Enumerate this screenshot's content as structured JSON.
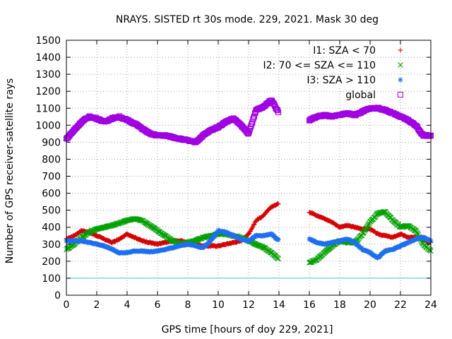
{
  "chart_data": {
    "type": "scatter",
    "title": "NRAYS. SISTED rt 30s mode. 229, 2021. Mask 30 deg",
    "xlabel": "GPS time [hours of doy 229, 2021]",
    "ylabel": "Number of GPS receiver-satellite rays",
    "xlim": [
      0,
      24
    ],
    "ylim": [
      0,
      1500
    ],
    "xticks": [
      0,
      2,
      4,
      6,
      8,
      10,
      12,
      14,
      16,
      18,
      20,
      22,
      24
    ],
    "yticks": [
      0,
      100,
      200,
      300,
      400,
      500,
      600,
      700,
      800,
      900,
      1000,
      1100,
      1200,
      1300,
      1400,
      1500
    ],
    "grid": true,
    "legend_position": "top-right",
    "reference_line": {
      "y": 100,
      "color": "#40c8d8"
    },
    "data_gap": [
      14.15,
      15.85
    ],
    "series": [
      {
        "name": "I1: SZA < 70",
        "marker": "+",
        "color": "#d40000",
        "x": [
          0,
          0.5,
          1,
          1.5,
          2,
          2.5,
          3,
          3.5,
          4,
          4.5,
          5,
          5.5,
          6,
          6.5,
          7,
          7.5,
          8,
          8.5,
          9,
          9.5,
          10,
          10.5,
          11,
          11.5,
          12,
          12.5,
          13,
          13.5,
          14,
          16,
          16.5,
          17,
          17.5,
          18,
          18.5,
          19,
          19.5,
          20,
          20.5,
          21,
          21.5,
          22,
          22.5,
          23,
          23.5,
          24
        ],
        "y": [
          330,
          350,
          380,
          370,
          350,
          330,
          310,
          330,
          360,
          340,
          320,
          310,
          300,
          310,
          320,
          320,
          310,
          300,
          290,
          290,
          290,
          300,
          310,
          320,
          360,
          440,
          470,
          520,
          540,
          490,
          470,
          450,
          430,
          400,
          410,
          400,
          390,
          390,
          360,
          350,
          340,
          360,
          340,
          340,
          330,
          310
        ]
      },
      {
        "name": "I2: 70 <= SZA <= 110",
        "marker": "x",
        "color": "#00a000",
        "x": [
          0,
          0.5,
          1,
          1.5,
          2,
          2.5,
          3,
          3.5,
          4,
          4.5,
          5,
          5.5,
          6,
          6.5,
          7,
          7.5,
          8,
          8.5,
          9,
          9.5,
          10,
          10.5,
          11,
          11.5,
          12,
          12.5,
          13,
          13.5,
          14,
          16,
          16.5,
          17,
          17.5,
          18,
          18.5,
          19,
          19.5,
          20,
          20.5,
          21,
          21.5,
          22,
          22.5,
          23,
          23.5,
          24
        ],
        "y": [
          270,
          300,
          340,
          370,
          390,
          400,
          410,
          425,
          440,
          450,
          440,
          410,
          380,
          350,
          320,
          300,
          310,
          320,
          340,
          350,
          360,
          360,
          350,
          340,
          320,
          300,
          280,
          250,
          210,
          190,
          210,
          250,
          290,
          320,
          310,
          310,
          360,
          430,
          480,
          490,
          440,
          400,
          410,
          380,
          300,
          260
        ]
      },
      {
        "name": "I3: SZA > 110",
        "marker": "*",
        "color": "#1e6ff0",
        "x": [
          0,
          0.5,
          1,
          1.5,
          2,
          2.5,
          3,
          3.5,
          4,
          4.5,
          5,
          5.5,
          6,
          6.5,
          7,
          7.5,
          8,
          8.5,
          9,
          9.5,
          10,
          10.5,
          11,
          11.5,
          12,
          12.5,
          13,
          13.5,
          14,
          16,
          16.5,
          17,
          17.5,
          18,
          18.5,
          19,
          19.5,
          20,
          20.5,
          21,
          21.5,
          22,
          22.5,
          23,
          23.5,
          24
        ],
        "y": [
          320,
          320,
          320,
          310,
          300,
          290,
          270,
          250,
          250,
          260,
          260,
          255,
          260,
          270,
          280,
          290,
          300,
          290,
          280,
          320,
          380,
          370,
          350,
          330,
          320,
          350,
          350,
          360,
          320,
          330,
          310,
          300,
          310,
          320,
          330,
          310,
          270,
          250,
          220,
          260,
          270,
          290,
          310,
          330,
          340,
          320
        ]
      },
      {
        "name": "global",
        "marker": "square",
        "color": "#a000e0",
        "x": [
          0,
          0.5,
          1,
          1.5,
          2,
          2.5,
          3,
          3.5,
          4,
          4.5,
          5,
          5.5,
          6,
          6.5,
          7,
          7.5,
          8,
          8.5,
          9,
          9.5,
          10,
          10.5,
          11,
          11.5,
          12,
          12.5,
          13,
          13.5,
          14,
          16,
          16.5,
          17,
          17.5,
          18,
          18.5,
          19,
          19.5,
          20,
          20.5,
          21,
          21.5,
          22,
          22.5,
          23,
          23.5,
          24
        ],
        "y": [
          920,
          970,
          1020,
          1050,
          1040,
          1020,
          1040,
          1050,
          1030,
          1010,
          980,
          950,
          940,
          940,
          930,
          920,
          910,
          900,
          940,
          970,
          990,
          1020,
          1040,
          1000,
          950,
          1090,
          1110,
          1150,
          1070,
          1030,
          1050,
          1060,
          1050,
          1060,
          1070,
          1060,
          1080,
          1100,
          1100,
          1090,
          1070,
          1050,
          1030,
          1000,
          940,
          940
        ]
      }
    ]
  }
}
